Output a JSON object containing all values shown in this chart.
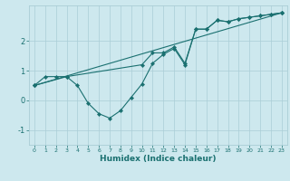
{
  "xlabel": "Humidex (Indice chaleur)",
  "background_color": "#cde8ee",
  "grid_color": "#aacdd6",
  "line_color": "#1a7070",
  "xlim": [
    -0.5,
    23.5
  ],
  "ylim": [
    -1.5,
    3.2
  ],
  "yticks": [
    -1,
    0,
    1,
    2
  ],
  "xticks": [
    0,
    1,
    2,
    3,
    4,
    5,
    6,
    7,
    8,
    9,
    10,
    11,
    12,
    13,
    14,
    15,
    16,
    17,
    18,
    19,
    20,
    21,
    22,
    23
  ],
  "line1_x": [
    0,
    1,
    2,
    3,
    4,
    5,
    6,
    7,
    8,
    9,
    10,
    11,
    12,
    13,
    14,
    15,
    16,
    17,
    18,
    19,
    20,
    21,
    22,
    23
  ],
  "line1_y": [
    0.5,
    0.8,
    0.8,
    0.8,
    0.5,
    -0.1,
    -0.45,
    -0.6,
    -0.35,
    0.1,
    0.55,
    1.25,
    1.55,
    1.75,
    1.2,
    2.4,
    2.4,
    2.7,
    2.65,
    2.75,
    2.8,
    2.85,
    2.9,
    2.95
  ],
  "line2_x": [
    0,
    3,
    10,
    11,
    12,
    13,
    14,
    15,
    16,
    17,
    18,
    19,
    20,
    21,
    22,
    23
  ],
  "line2_y": [
    0.5,
    0.8,
    1.2,
    1.6,
    1.6,
    1.8,
    1.25,
    2.4,
    2.4,
    2.7,
    2.65,
    2.75,
    2.8,
    2.85,
    2.9,
    2.95
  ],
  "line3_x": [
    0,
    23
  ],
  "line3_y": [
    0.5,
    2.95
  ]
}
